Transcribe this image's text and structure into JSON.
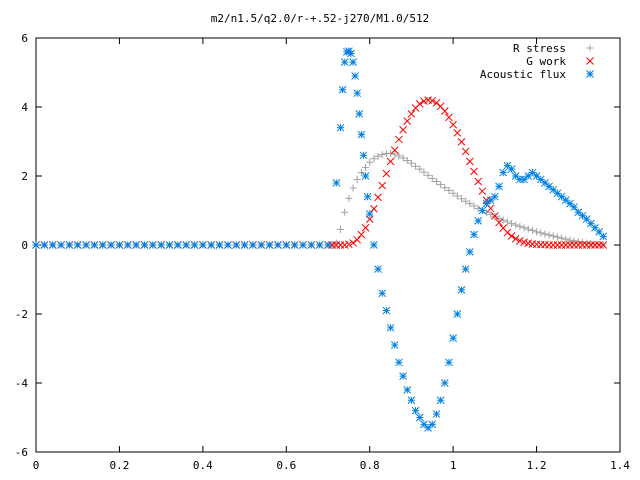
{
  "chart_data": {
    "type": "scatter",
    "title": "m2/n1.5/q2.0/r-+.52-j270/M1.0/512",
    "xlabel": "",
    "ylabel": "",
    "xlim": [
      0,
      1.4
    ],
    "ylim": [
      -6,
      6
    ],
    "x_ticks": [
      "0",
      "0.2",
      "0.4",
      "0.6",
      "0.8",
      "1",
      "1.2",
      "1.4"
    ],
    "y_ticks": [
      "-6",
      "-4",
      "-2",
      "0",
      "2",
      "4",
      "6"
    ],
    "grid": false,
    "legend_position": "top-right",
    "series": [
      {
        "name": "R stress",
        "marker": "plus",
        "color": "#a0a0a0",
        "x": [
          0.0,
          0.02,
          0.04,
          0.06,
          0.08,
          0.1,
          0.12,
          0.14,
          0.16,
          0.18,
          0.2,
          0.22,
          0.24,
          0.26,
          0.28,
          0.3,
          0.32,
          0.34,
          0.36,
          0.38,
          0.4,
          0.42,
          0.44,
          0.46,
          0.48,
          0.5,
          0.52,
          0.54,
          0.56,
          0.58,
          0.6,
          0.62,
          0.64,
          0.66,
          0.68,
          0.7,
          0.71,
          0.72,
          0.73,
          0.74,
          0.75,
          0.76,
          0.77,
          0.78,
          0.79,
          0.8,
          0.81,
          0.82,
          0.83,
          0.84,
          0.85,
          0.86,
          0.87,
          0.88,
          0.89,
          0.9,
          0.91,
          0.92,
          0.93,
          0.94,
          0.95,
          0.96,
          0.97,
          0.98,
          0.99,
          1.0,
          1.01,
          1.02,
          1.03,
          1.04,
          1.05,
          1.06,
          1.07,
          1.08,
          1.09,
          1.1,
          1.11,
          1.12,
          1.13,
          1.14,
          1.15,
          1.16,
          1.17,
          1.18,
          1.19,
          1.2,
          1.21,
          1.22,
          1.23,
          1.24,
          1.25,
          1.26,
          1.27,
          1.28,
          1.29,
          1.3,
          1.31,
          1.32,
          1.33,
          1.34,
          1.35,
          1.36
        ],
        "y": [
          0,
          0,
          0,
          0,
          0,
          0,
          0,
          0,
          0,
          0,
          0,
          0,
          0,
          0,
          0,
          0,
          0,
          0,
          0,
          0,
          0,
          0,
          0,
          0,
          0,
          0,
          0,
          0,
          0,
          0,
          0,
          0,
          0,
          0,
          0,
          0,
          0,
          0.05,
          0.45,
          0.95,
          1.35,
          1.65,
          1.9,
          2.1,
          2.25,
          2.4,
          2.5,
          2.57,
          2.62,
          2.65,
          2.65,
          2.63,
          2.58,
          2.52,
          2.45,
          2.37,
          2.28,
          2.2,
          2.11,
          2.02,
          1.93,
          1.84,
          1.75,
          1.66,
          1.58,
          1.5,
          1.42,
          1.34,
          1.27,
          1.2,
          1.13,
          1.06,
          1.0,
          0.94,
          0.88,
          0.82,
          0.77,
          0.72,
          0.67,
          0.62,
          0.58,
          0.54,
          0.5,
          0.46,
          0.42,
          0.38,
          0.35,
          0.32,
          0.29,
          0.26,
          0.23,
          0.2,
          0.17,
          0.14,
          0.12,
          0.1,
          0.08,
          0.06,
          0.04,
          0.02,
          0.01,
          0.0
        ]
      },
      {
        "name": "G work",
        "marker": "cross",
        "color": "#ff0000",
        "x": [
          0.0,
          0.02,
          0.04,
          0.06,
          0.08,
          0.1,
          0.12,
          0.14,
          0.16,
          0.18,
          0.2,
          0.22,
          0.24,
          0.26,
          0.28,
          0.3,
          0.32,
          0.34,
          0.36,
          0.38,
          0.4,
          0.42,
          0.44,
          0.46,
          0.48,
          0.5,
          0.52,
          0.54,
          0.56,
          0.58,
          0.6,
          0.62,
          0.64,
          0.66,
          0.68,
          0.7,
          0.71,
          0.72,
          0.73,
          0.74,
          0.75,
          0.76,
          0.77,
          0.78,
          0.79,
          0.8,
          0.81,
          0.82,
          0.83,
          0.84,
          0.85,
          0.86,
          0.87,
          0.88,
          0.89,
          0.9,
          0.91,
          0.92,
          0.93,
          0.94,
          0.95,
          0.96,
          0.97,
          0.98,
          0.99,
          1.0,
          1.01,
          1.02,
          1.03,
          1.04,
          1.05,
          1.06,
          1.07,
          1.08,
          1.09,
          1.1,
          1.11,
          1.12,
          1.13,
          1.14,
          1.15,
          1.16,
          1.17,
          1.18,
          1.19,
          1.2,
          1.21,
          1.22,
          1.23,
          1.24,
          1.25,
          1.26,
          1.27,
          1.28,
          1.29,
          1.3,
          1.31,
          1.32,
          1.33,
          1.34,
          1.35,
          1.36
        ],
        "y": [
          0,
          0,
          0,
          0,
          0,
          0,
          0,
          0,
          0,
          0,
          0,
          0,
          0,
          0,
          0,
          0,
          0,
          0,
          0,
          0,
          0,
          0,
          0,
          0,
          0,
          0,
          0,
          0,
          0,
          0,
          0,
          0,
          0,
          0,
          0,
          0,
          0,
          0,
          0,
          0,
          0.02,
          0.06,
          0.15,
          0.3,
          0.5,
          0.75,
          1.05,
          1.38,
          1.72,
          2.07,
          2.42,
          2.75,
          3.06,
          3.34,
          3.59,
          3.8,
          3.97,
          4.09,
          4.17,
          4.2,
          4.18,
          4.12,
          4.02,
          3.88,
          3.7,
          3.49,
          3.25,
          2.99,
          2.71,
          2.42,
          2.13,
          1.84,
          1.56,
          1.3,
          1.06,
          0.84,
          0.65,
          0.49,
          0.36,
          0.26,
          0.18,
          0.12,
          0.08,
          0.05,
          0.03,
          0.02,
          0.01,
          0.01,
          0,
          0,
          0,
          0,
          0,
          0,
          0,
          0,
          0,
          0,
          0,
          0,
          0,
          0
        ]
      },
      {
        "name": "Acoustic flux",
        "marker": "star",
        "color": "#0080e0",
        "x": [
          0.0,
          0.02,
          0.04,
          0.06,
          0.08,
          0.1,
          0.12,
          0.14,
          0.16,
          0.18,
          0.2,
          0.22,
          0.24,
          0.26,
          0.28,
          0.3,
          0.32,
          0.34,
          0.36,
          0.38,
          0.4,
          0.42,
          0.44,
          0.46,
          0.48,
          0.5,
          0.52,
          0.54,
          0.56,
          0.58,
          0.6,
          0.62,
          0.64,
          0.66,
          0.68,
          0.7,
          0.72,
          0.73,
          0.735,
          0.74,
          0.745,
          0.75,
          0.755,
          0.76,
          0.765,
          0.77,
          0.775,
          0.78,
          0.785,
          0.79,
          0.795,
          0.8,
          0.81,
          0.82,
          0.83,
          0.84,
          0.85,
          0.86,
          0.87,
          0.88,
          0.89,
          0.9,
          0.91,
          0.92,
          0.93,
          0.94,
          0.95,
          0.96,
          0.97,
          0.98,
          0.99,
          1.0,
          1.01,
          1.02,
          1.03,
          1.04,
          1.05,
          1.06,
          1.07,
          1.08,
          1.09,
          1.1,
          1.11,
          1.12,
          1.13,
          1.14,
          1.15,
          1.16,
          1.17,
          1.18,
          1.19,
          1.2,
          1.21,
          1.22,
          1.23,
          1.24,
          1.25,
          1.26,
          1.27,
          1.28,
          1.29,
          1.3,
          1.31,
          1.32,
          1.33,
          1.34,
          1.35,
          1.36
        ],
        "y": [
          0,
          0,
          0,
          0,
          0,
          0,
          0,
          0,
          0,
          0,
          0,
          0,
          0,
          0,
          0,
          0,
          0,
          0,
          0,
          0,
          0,
          0,
          0,
          0,
          0,
          0,
          0,
          0,
          0,
          0,
          0,
          0,
          0,
          0,
          0,
          0,
          1.8,
          3.4,
          4.5,
          5.3,
          5.6,
          5.62,
          5.55,
          5.3,
          4.9,
          4.4,
          3.8,
          3.2,
          2.6,
          2.0,
          1.4,
          0.9,
          0.0,
          -0.7,
          -1.4,
          -1.9,
          -2.4,
          -2.9,
          -3.4,
          -3.8,
          -4.2,
          -4.5,
          -4.8,
          -5.0,
          -5.2,
          -5.3,
          -5.2,
          -4.9,
          -4.5,
          -4.0,
          -3.4,
          -2.7,
          -2.0,
          -1.3,
          -0.7,
          -0.2,
          0.3,
          0.7,
          1.0,
          1.2,
          1.3,
          1.4,
          1.7,
          2.1,
          2.3,
          2.2,
          2.0,
          1.9,
          1.9,
          2.0,
          2.1,
          2.0,
          1.9,
          1.8,
          1.7,
          1.6,
          1.5,
          1.4,
          1.3,
          1.2,
          1.1,
          0.95,
          0.85,
          0.75,
          0.62,
          0.5,
          0.38,
          0.25
        ]
      }
    ]
  }
}
